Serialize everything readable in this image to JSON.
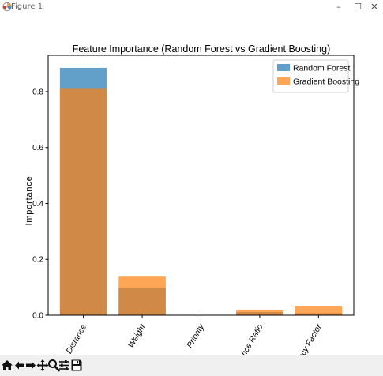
{
  "window": {
    "title": "Figure 1",
    "minimize_glyph": "–",
    "maximize_glyph": "☐",
    "close_glyph": "✕"
  },
  "toolbar": {
    "icons": [
      "home-icon",
      "back-icon",
      "forward-icon",
      "pan-icon",
      "zoom-icon",
      "configure-subplots-icon",
      "save-icon"
    ]
  },
  "chart_data": {
    "type": "bar",
    "title": "Feature Importance (Random Forest vs Gradient Boosting)",
    "xlabel": "",
    "ylabel": "Importance",
    "categories": [
      "Distance",
      "Weight",
      "Priority",
      "Distance Ratio",
      "Urgency Factor"
    ],
    "series": [
      {
        "name": "Random Forest",
        "values": [
          0.885,
          0.098,
          0.0,
          0.011,
          0.007
        ],
        "color": "#1f77b4",
        "alpha": 0.7
      },
      {
        "name": "Gradient Boosting",
        "values": [
          0.81,
          0.138,
          0.0,
          0.02,
          0.031
        ],
        "color": "#ff7f0e",
        "alpha": 0.7
      }
    ],
    "ylim": [
      0,
      0.93
    ],
    "yticks": [
      0.0,
      0.2,
      0.4,
      0.6,
      0.8
    ],
    "ytick_labels": [
      "0.0",
      "0.2",
      "0.4",
      "0.6",
      "0.8"
    ],
    "legend_position": "top-right",
    "grid": false
  }
}
